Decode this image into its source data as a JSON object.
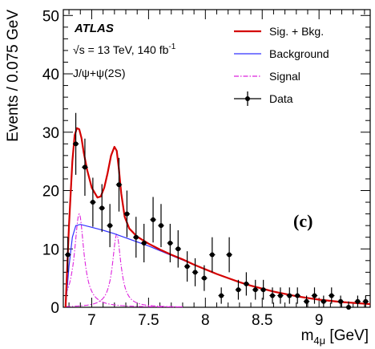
{
  "chart_data": {
    "type": "line",
    "xlabel": "m",
    "xlabel_sub": "4μ",
    "xlabel_unit": " [GeV]",
    "ylabel": "Events / 0.075 GeV",
    "xlim": [
      6.75,
      9.45
    ],
    "ylim": [
      0,
      51
    ],
    "x_ticks": [
      7,
      7.5,
      8,
      8.5,
      9
    ],
    "x_tick_labels": [
      "7",
      "7.5",
      "8",
      "8.5",
      "9"
    ],
    "y_ticks": [
      0,
      10,
      20,
      30,
      40,
      50
    ],
    "y_tick_labels": [
      "0",
      "10",
      "20",
      "30",
      "40",
      "50"
    ],
    "experiment": "ATLAS",
    "energy_text": "s = 13 TeV, 140 fb",
    "energy_sqrt": "√",
    "energy_sup": "-1",
    "channel_text": "J/ψ+ψ(2S)",
    "panel_label": "(c)",
    "legend_position": "top-right",
    "legend": [
      {
        "label": "Sig. + Bkg.",
        "style": "line",
        "color": "#d40000"
      },
      {
        "label": "Background",
        "style": "line",
        "color": "#3030ff"
      },
      {
        "label": "Signal",
        "style": "dashdot",
        "color": "#dd22dd"
      },
      {
        "label": "Data",
        "style": "marker",
        "color": "#000000"
      }
    ],
    "series": [
      {
        "name": "Data",
        "type": "scatter",
        "color": "#000000",
        "x": [
          6.79,
          6.86,
          6.94,
          7.01,
          7.09,
          7.16,
          7.24,
          7.31,
          7.39,
          7.46,
          7.54,
          7.61,
          7.69,
          7.76,
          7.84,
          7.91,
          7.99,
          8.06,
          8.14,
          8.21,
          8.29,
          8.36,
          8.44,
          8.51,
          8.59,
          8.66,
          8.74,
          8.81,
          8.89,
          8.96,
          9.04,
          9.11,
          9.19,
          9.26,
          9.34,
          9.41
        ],
        "y": [
          9,
          28,
          24,
          18,
          17,
          14,
          21,
          16,
          12,
          11,
          15,
          14,
          11,
          10,
          7,
          6,
          5,
          9,
          2,
          9,
          3,
          4,
          3,
          3,
          2,
          2,
          2,
          2,
          1,
          2,
          1,
          2,
          1,
          0,
          1,
          1
        ],
        "yerr": [
          3,
          5.3,
          4.9,
          4.2,
          4.1,
          3.7,
          4.6,
          4.0,
          3.5,
          3.3,
          3.9,
          3.7,
          3.3,
          3.2,
          2.6,
          2.4,
          2.2,
          3.0,
          1.4,
          3.0,
          1.7,
          2.0,
          1.7,
          1.7,
          1.4,
          1.4,
          1.4,
          1.4,
          1.0,
          1.4,
          1.0,
          1.4,
          1.0,
          1.0,
          1.0,
          1.0
        ]
      },
      {
        "name": "Background",
        "type": "line",
        "color": "#3030ff",
        "x": [
          6.77,
          6.8,
          6.83,
          6.86,
          6.9,
          7.0,
          7.1,
          7.2,
          7.3,
          7.4,
          7.5,
          7.6,
          7.7,
          7.8,
          7.9,
          8.0,
          8.1,
          8.2,
          8.3,
          8.4,
          8.5,
          8.6,
          8.7,
          8.8,
          8.9,
          9.0,
          9.1,
          9.2,
          9.3,
          9.45
        ],
        "y": [
          0,
          7,
          12,
          14,
          14.2,
          13.7,
          13.2,
          12.6,
          11.9,
          11.2,
          10.5,
          9.7,
          8.9,
          8.1,
          7.3,
          6.5,
          5.7,
          5.0,
          4.3,
          3.7,
          3.2,
          2.7,
          2.3,
          1.9,
          1.6,
          1.3,
          1.1,
          0.9,
          0.75,
          0.55
        ]
      },
      {
        "name": "Signal",
        "type": "line",
        "color": "#dd22dd",
        "peaks": [
          {
            "mean": 6.89,
            "amplitude": 16,
            "width": 0.05
          },
          {
            "mean": 7.22,
            "amplitude": 12.5,
            "width": 0.045
          }
        ]
      },
      {
        "name": "Sig. + Bkg.",
        "type": "line",
        "color": "#d40000",
        "x": [
          6.77,
          6.8,
          6.83,
          6.85,
          6.87,
          6.89,
          6.91,
          6.93,
          6.96,
          7.0,
          7.05,
          7.08,
          7.11,
          7.14,
          7.17,
          7.2,
          7.22,
          7.24,
          7.26,
          7.29,
          7.33,
          7.4,
          7.5,
          7.6,
          7.7,
          7.8,
          7.9,
          8.0,
          8.1,
          8.2,
          8.3,
          8.4,
          8.5,
          8.6,
          8.7,
          8.8,
          8.9,
          9.0,
          9.1,
          9.2,
          9.3,
          9.45
        ],
        "y": [
          0,
          14,
          25,
          29.5,
          30.7,
          30.5,
          29,
          26.5,
          23.5,
          20.5,
          18.8,
          19,
          20.5,
          23,
          26,
          27.5,
          26.8,
          23.5,
          19.5,
          15.5,
          13.5,
          12.1,
          10.9,
          9.9,
          9.0,
          8.2,
          7.3,
          6.5,
          5.7,
          5.0,
          4.3,
          3.7,
          3.2,
          2.7,
          2.3,
          1.9,
          1.6,
          1.3,
          1.1,
          0.9,
          0.75,
          0.55
        ]
      }
    ]
  }
}
